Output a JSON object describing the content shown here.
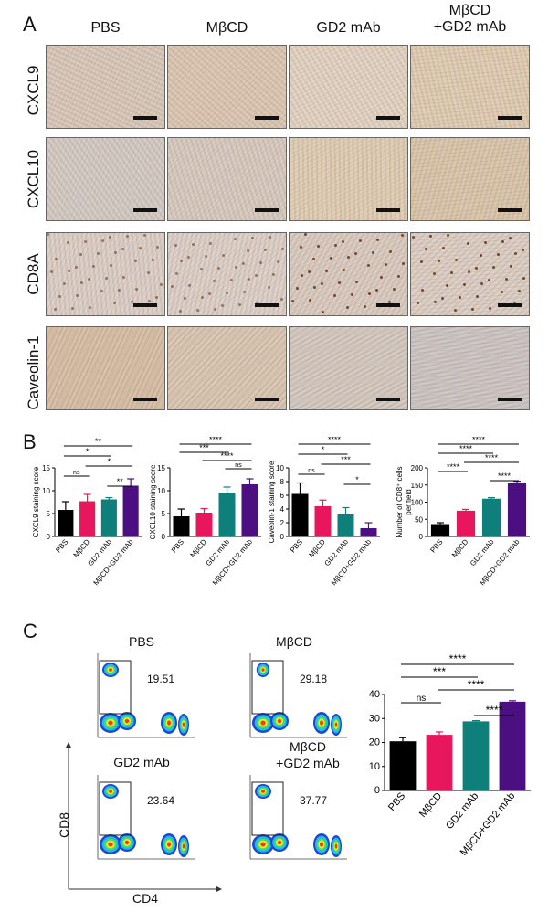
{
  "panel_a": {
    "letter": "A",
    "columns": [
      "PBS",
      "MβCD",
      "GD2 mAb",
      "MβCD\n+GD2 mAb"
    ],
    "rows": [
      "CXCL9",
      "CXCL10",
      "CD8A",
      "Caveolin-1"
    ],
    "tiles": [
      [
        "#d9cbbd",
        "#dccab6",
        "#e3d6c6",
        "#e0cfb6"
      ],
      [
        "#d4cdc8",
        "#d7cdc3",
        "#e0d0b8",
        "#dac8ae"
      ],
      [
        "#dcd2cb",
        "#ddd3cc",
        "#dacec4",
        "#dcd1c8"
      ],
      [
        "#d7c1a8",
        "#d9c9b6",
        "#d4ccc4",
        "#cdc8c8"
      ]
    ]
  },
  "panel_b": {
    "letter": "B"
  },
  "panel_c": {
    "letter": "C",
    "flow": [
      {
        "title": "PBS",
        "value": "19.51"
      },
      {
        "title": "MβCD",
        "value": "29.18"
      },
      {
        "title": "GD2 mAb",
        "value": "23.64"
      },
      {
        "title": "MβCD\n+GD2 mAb",
        "value": "37.77"
      }
    ],
    "xlabel": "CD4",
    "ylabel": "CD8"
  },
  "colors": {
    "PBS": "#000000",
    "MβCD": "#e8175d",
    "GD2 mAb": "#0e7f7b",
    "MβCD+GD2 mAb": "#4b0f82"
  },
  "chart_data": [
    {
      "type": "bar",
      "categories": [
        "PBS",
        "MβCD",
        "GD2 mAb",
        "MβCD+GD2 mAb"
      ],
      "values": [
        5.8,
        7.7,
        8.1,
        11.1
      ],
      "errors": [
        1.8,
        1.5,
        0.4,
        1.5
      ],
      "ylabel": "CXCL9 staining score",
      "ylim": [
        0,
        15
      ],
      "yticks": [
        0,
        5,
        10,
        15
      ],
      "sig": [
        {
          "a": 0,
          "b": 1,
          "label": "ns"
        },
        {
          "a": 0,
          "b": 2,
          "label": "*"
        },
        {
          "a": 0,
          "b": 3,
          "label": "**"
        },
        {
          "a": 1,
          "b": 3,
          "label": "*"
        },
        {
          "a": 2,
          "b": 3,
          "label": "**"
        }
      ]
    },
    {
      "type": "bar",
      "categories": [
        "PBS",
        "MβCD",
        "GD2 mAb",
        "MβCD+GD2 mAb"
      ],
      "values": [
        4.4,
        5.2,
        9.6,
        11.4
      ],
      "errors": [
        1.6,
        0.9,
        1.2,
        1.2
      ],
      "ylabel": "CXCL10 staining score",
      "ylim": [
        0,
        15
      ],
      "yticks": [
        0,
        5,
        10,
        15
      ],
      "sig": [
        {
          "a": 0,
          "b": 2,
          "label": "***"
        },
        {
          "a": 0,
          "b": 3,
          "label": "****"
        },
        {
          "a": 1,
          "b": 3,
          "label": "****"
        },
        {
          "a": 2,
          "b": 3,
          "label": "ns"
        }
      ]
    },
    {
      "type": "bar",
      "categories": [
        "PBS",
        "MβCD",
        "GD2 mAb",
        "MβCD+GD2 mAb"
      ],
      "values": [
        6.2,
        4.4,
        3.2,
        1.2
      ],
      "errors": [
        1.6,
        0.9,
        1.0,
        0.8
      ],
      "ylabel": "Caveolin-1 staining score",
      "ylim": [
        0,
        10
      ],
      "yticks": [
        0,
        2,
        4,
        6,
        8,
        10
      ],
      "sig": [
        {
          "a": 0,
          "b": 1,
          "label": "ns"
        },
        {
          "a": 0,
          "b": 2,
          "label": "*"
        },
        {
          "a": 0,
          "b": 3,
          "label": "****"
        },
        {
          "a": 1,
          "b": 3,
          "label": "***"
        },
        {
          "a": 2,
          "b": 3,
          "label": "*"
        }
      ]
    },
    {
      "type": "bar",
      "categories": [
        "PBS",
        "MβCD",
        "GD2 mAb",
        "MβCD+GD2 mAb"
      ],
      "values": [
        36,
        75,
        110,
        155
      ],
      "errors": [
        4,
        4,
        3,
        6
      ],
      "ylabel": "Number of CD8⁺ cells\nper field",
      "ylim": [
        0,
        200
      ],
      "yticks": [
        0,
        50,
        100,
        150,
        200
      ],
      "sig": [
        {
          "a": 0,
          "b": 1,
          "label": "****"
        },
        {
          "a": 0,
          "b": 2,
          "label": "****"
        },
        {
          "a": 0,
          "b": 3,
          "label": "****"
        },
        {
          "a": 1,
          "b": 3,
          "label": "****"
        },
        {
          "a": 2,
          "b": 3,
          "label": "****"
        }
      ]
    },
    {
      "type": "bar",
      "categories": [
        "PBS",
        "MβCD",
        "GD2 mAb",
        "MβCD+GD2 mAb"
      ],
      "values": [
        20.5,
        23.2,
        28.8,
        37.0
      ],
      "errors": [
        1.5,
        1.2,
        0.3,
        0.4
      ],
      "ylabel": "",
      "ylim": [
        0,
        40
      ],
      "yticks": [
        0,
        10,
        20,
        30,
        40
      ],
      "sig": [
        {
          "a": 0,
          "b": 1,
          "label": "ns"
        },
        {
          "a": 0,
          "b": 2,
          "label": "***"
        },
        {
          "a": 0,
          "b": 3,
          "label": "****"
        },
        {
          "a": 1,
          "b": 3,
          "label": "****"
        },
        {
          "a": 2,
          "b": 3,
          "label": "****"
        }
      ]
    }
  ]
}
